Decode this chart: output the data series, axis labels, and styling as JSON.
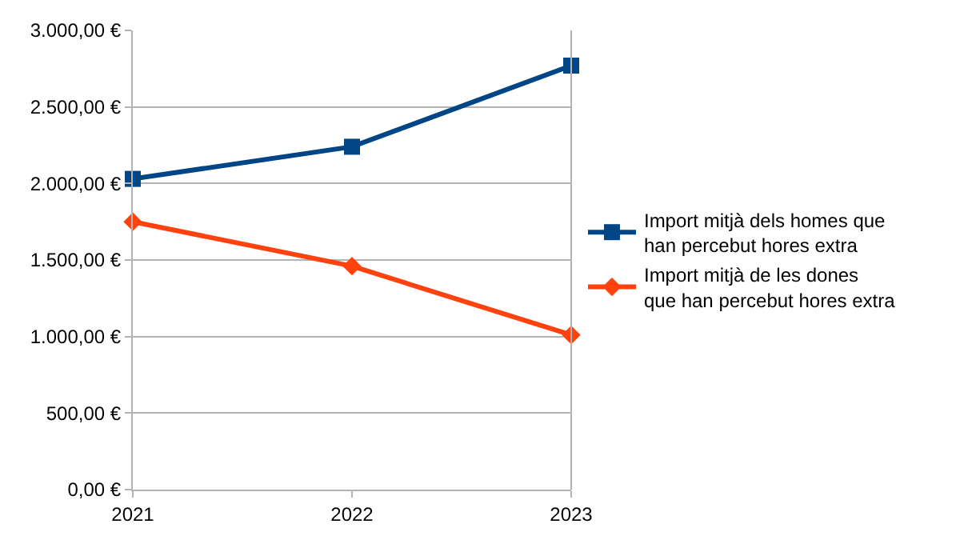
{
  "chart_data": {
    "type": "line",
    "x": [
      2021,
      2022,
      2023
    ],
    "xlim": [
      2021,
      2023
    ],
    "xticks": [
      2021,
      2022,
      2023
    ],
    "ylim": [
      0,
      3000
    ],
    "yticks": [
      {
        "value": 0,
        "label": "0,00 €"
      },
      {
        "value": 500,
        "label": "500,00 €"
      },
      {
        "value": 1000,
        "label": "1.000,00 €"
      },
      {
        "value": 1500,
        "label": "1.500,00 €"
      },
      {
        "value": 2000,
        "label": "2.000,00 €"
      },
      {
        "value": 2500,
        "label": "2.500,00 €"
      },
      {
        "value": 3000,
        "label": "3.000,00 €"
      }
    ],
    "series": [
      {
        "name": "Import mitjà dels homes que han percebut hores extra",
        "color": "#004586",
        "values": [
          2030,
          2240,
          2770
        ],
        "marker": "square"
      },
      {
        "name": "Import mitjà de les dones que han percebut hores extra",
        "color": "#ff420e",
        "values": [
          1750,
          1460,
          1010
        ],
        "marker": "diamond"
      }
    ],
    "grid": "y",
    "legend": "right",
    "line_style": "solid"
  }
}
